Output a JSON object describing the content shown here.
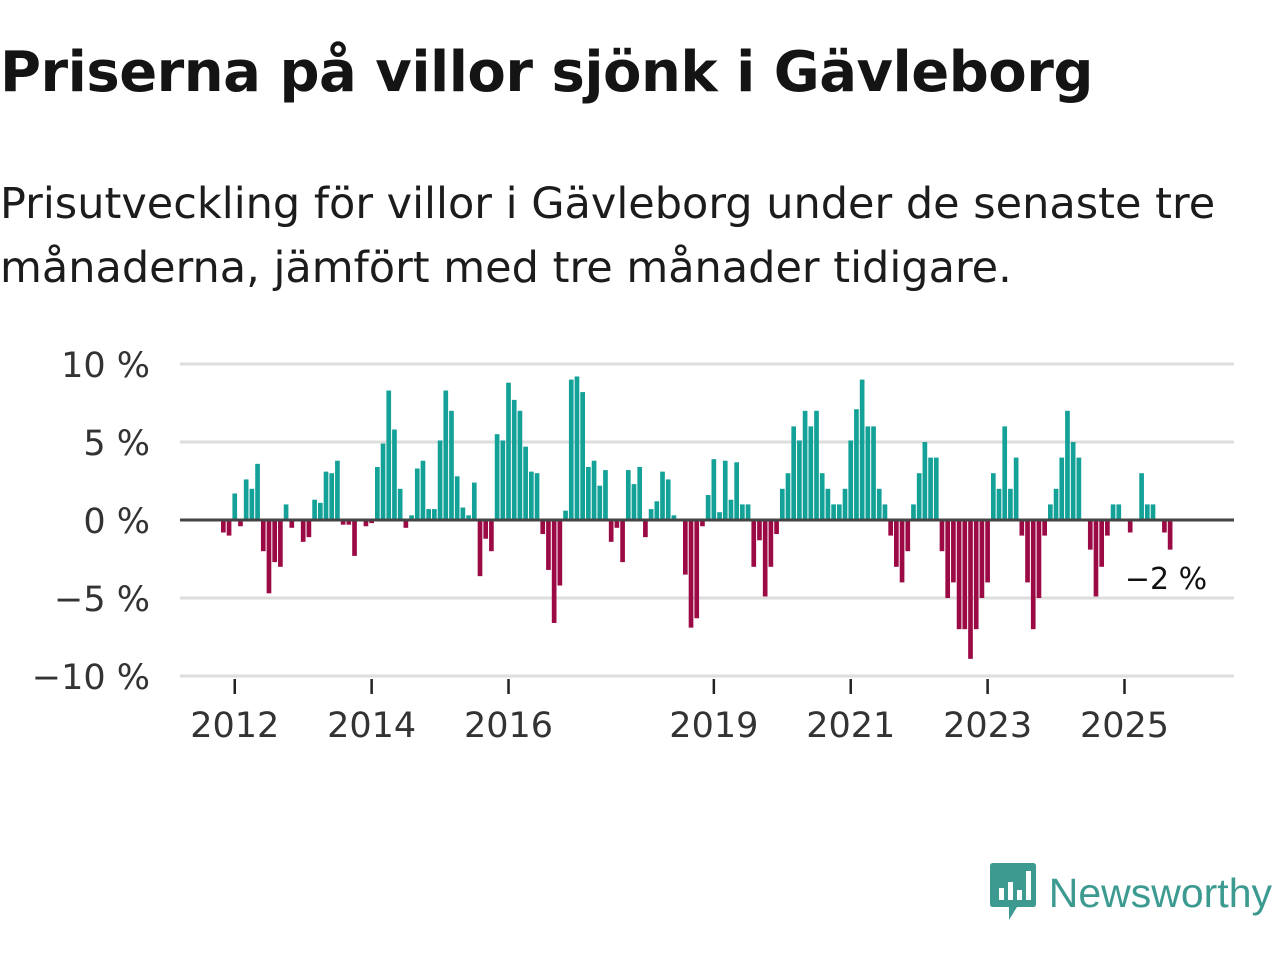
{
  "title": "Priserna på villor sjönk i Gävleborg",
  "subtitle": "Prisutveckling för villor i Gävleborg under de senaste tre månaderna, jämfört med tre månader tidigare.",
  "brand": {
    "name": "Newsworthy"
  },
  "colors": {
    "positive": "#13a198",
    "negative": "#9b0a45",
    "grid": "#dddddd",
    "zero": "#444444",
    "text": "#333333"
  },
  "chart_data": {
    "type": "bar",
    "title": "Priserna på villor sjönk i Gävleborg",
    "xlabel": "",
    "ylabel": "",
    "ylim": [
      -10,
      10
    ],
    "yticks": [
      10,
      5,
      0,
      -5,
      -10
    ],
    "ytick_labels": [
      "10 %",
      "5 %",
      "0 %",
      "−5 %",
      "−10 %"
    ],
    "x_range": [
      2011.2,
      2026.6
    ],
    "xticks": [
      2012,
      2014,
      2016,
      2019,
      2021,
      2023,
      2025
    ],
    "xtick_labels": [
      "2012",
      "2014",
      "2016",
      "2019",
      "2021",
      "2023",
      "2025"
    ],
    "start": {
      "year": 2011,
      "month": 11
    },
    "values": [
      -0.8,
      -1,
      1.7,
      -0.4,
      2.6,
      2,
      3.6,
      -2,
      -4.7,
      -2.7,
      -3,
      1,
      -0.5,
      0,
      -1.4,
      -1.1,
      1.3,
      1.1,
      3.1,
      3,
      3.8,
      -0.3,
      -0.3,
      -2.3,
      0,
      -0.4,
      -0.2,
      3.4,
      4.9,
      8.3,
      5.8,
      2,
      -0.5,
      0.3,
      3.3,
      3.8,
      0.7,
      0.7,
      5.1,
      8.3,
      7,
      2.8,
      0.8,
      0.3,
      2.4,
      -3.6,
      -1.2,
      -2,
      5.5,
      5.1,
      8.8,
      7.7,
      7,
      4.7,
      3.1,
      3,
      -0.9,
      -3.2,
      -6.6,
      -4.2,
      0.6,
      9,
      9.2,
      8.2,
      3.4,
      3.8,
      2.2,
      3.2,
      -1.4,
      -0.5,
      -2.7,
      3.2,
      2.3,
      3.4,
      -1.1,
      0.7,
      1.2,
      3.1,
      2.6,
      0.3,
      0,
      -3.5,
      -6.9,
      -6.3,
      -0.4,
      1.6,
      3.9,
      0.5,
      3.8,
      1.3,
      3.7,
      1,
      1,
      -3,
      -1.3,
      -4.9,
      -3,
      -0.9,
      2,
      3,
      6,
      5.1,
      7,
      6,
      7,
      3,
      2,
      1,
      1,
      2,
      5.1,
      7.1,
      9,
      6,
      6,
      2,
      1,
      -1,
      -3,
      -4,
      -2,
      1,
      3,
      5,
      4,
      4,
      -2,
      -5,
      -4,
      -7,
      -7,
      -8.9,
      -7,
      -5,
      -4,
      3,
      2,
      6,
      2,
      4,
      -1,
      -4,
      -7,
      -5,
      -1,
      1,
      2,
      4,
      7,
      5,
      4,
      0,
      -1.9,
      -4.9,
      -3,
      -1,
      1,
      1,
      0,
      -0.8,
      0,
      3,
      1,
      1,
      0,
      -0.8,
      -1.9
    ],
    "annotation": {
      "label": "−2 %",
      "value": -2
    }
  }
}
